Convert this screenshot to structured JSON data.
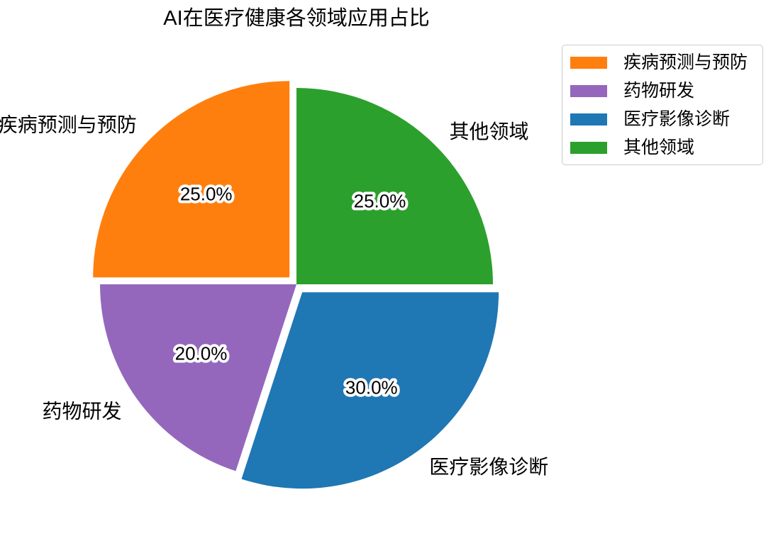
{
  "title": "AI在医疗健康各领域应用占比",
  "chart_data": {
    "type": "pie",
    "title": "AI在医疗健康各领域应用占比",
    "start_angle": 90,
    "counterclockwise": true,
    "pct_distance": 0.6,
    "label_distance": 1.1,
    "explode_fraction": 0.05,
    "slices": [
      {
        "name": "disease-prediction-prevention",
        "label": "疾病预测与预防",
        "value": 25.0,
        "pct_label": "25.0%",
        "color": "#ff7f0e",
        "exploded": true
      },
      {
        "name": "drug-research",
        "label": "药物研发",
        "value": 20.0,
        "pct_label": "20.0%",
        "color": "#9467bd",
        "exploded": false
      },
      {
        "name": "medical-imaging-diagnosis",
        "label": "医疗影像诊断",
        "value": 30.0,
        "pct_label": "30.0%",
        "color": "#1f77b4",
        "exploded": true
      },
      {
        "name": "other-fields",
        "label": "其他领域",
        "value": 25.0,
        "pct_label": "25.0%",
        "color": "#2ca02c",
        "exploded": false
      }
    ],
    "legend": {
      "position": "upper right"
    }
  }
}
